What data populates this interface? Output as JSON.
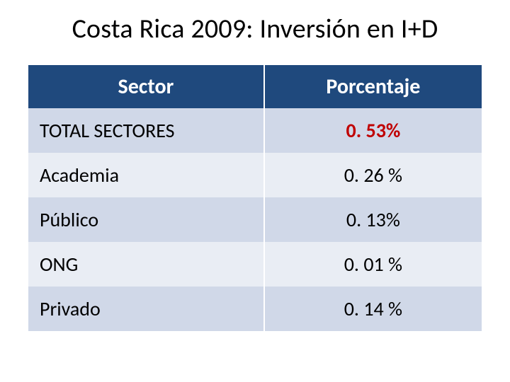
{
  "title": "Costa Rica 2009: Inversión en I+D",
  "table": {
    "columns": [
      "Sector",
      "Porcentaje"
    ],
    "col_widths_pct": [
      52,
      48
    ],
    "header_bg": "#1f497d",
    "header_fg": "#ffffff",
    "band_colors": [
      "#d0d8e8",
      "#e9edf4"
    ],
    "highlight_color": "#c00000",
    "header_fontsize": 30,
    "cell_fontsize": 28,
    "rows": [
      {
        "sector": "TOTAL SECTORES",
        "value": "0. 53%",
        "highlight": true
      },
      {
        "sector": "Academia",
        "value": "0. 26 %",
        "highlight": false
      },
      {
        "sector": "Público",
        "value": "0. 13%",
        "highlight": false
      },
      {
        "sector": "ONG",
        "value": "0. 01 %",
        "highlight": false
      },
      {
        "sector": "Privado",
        "value": "0. 14 %",
        "highlight": false
      }
    ]
  }
}
